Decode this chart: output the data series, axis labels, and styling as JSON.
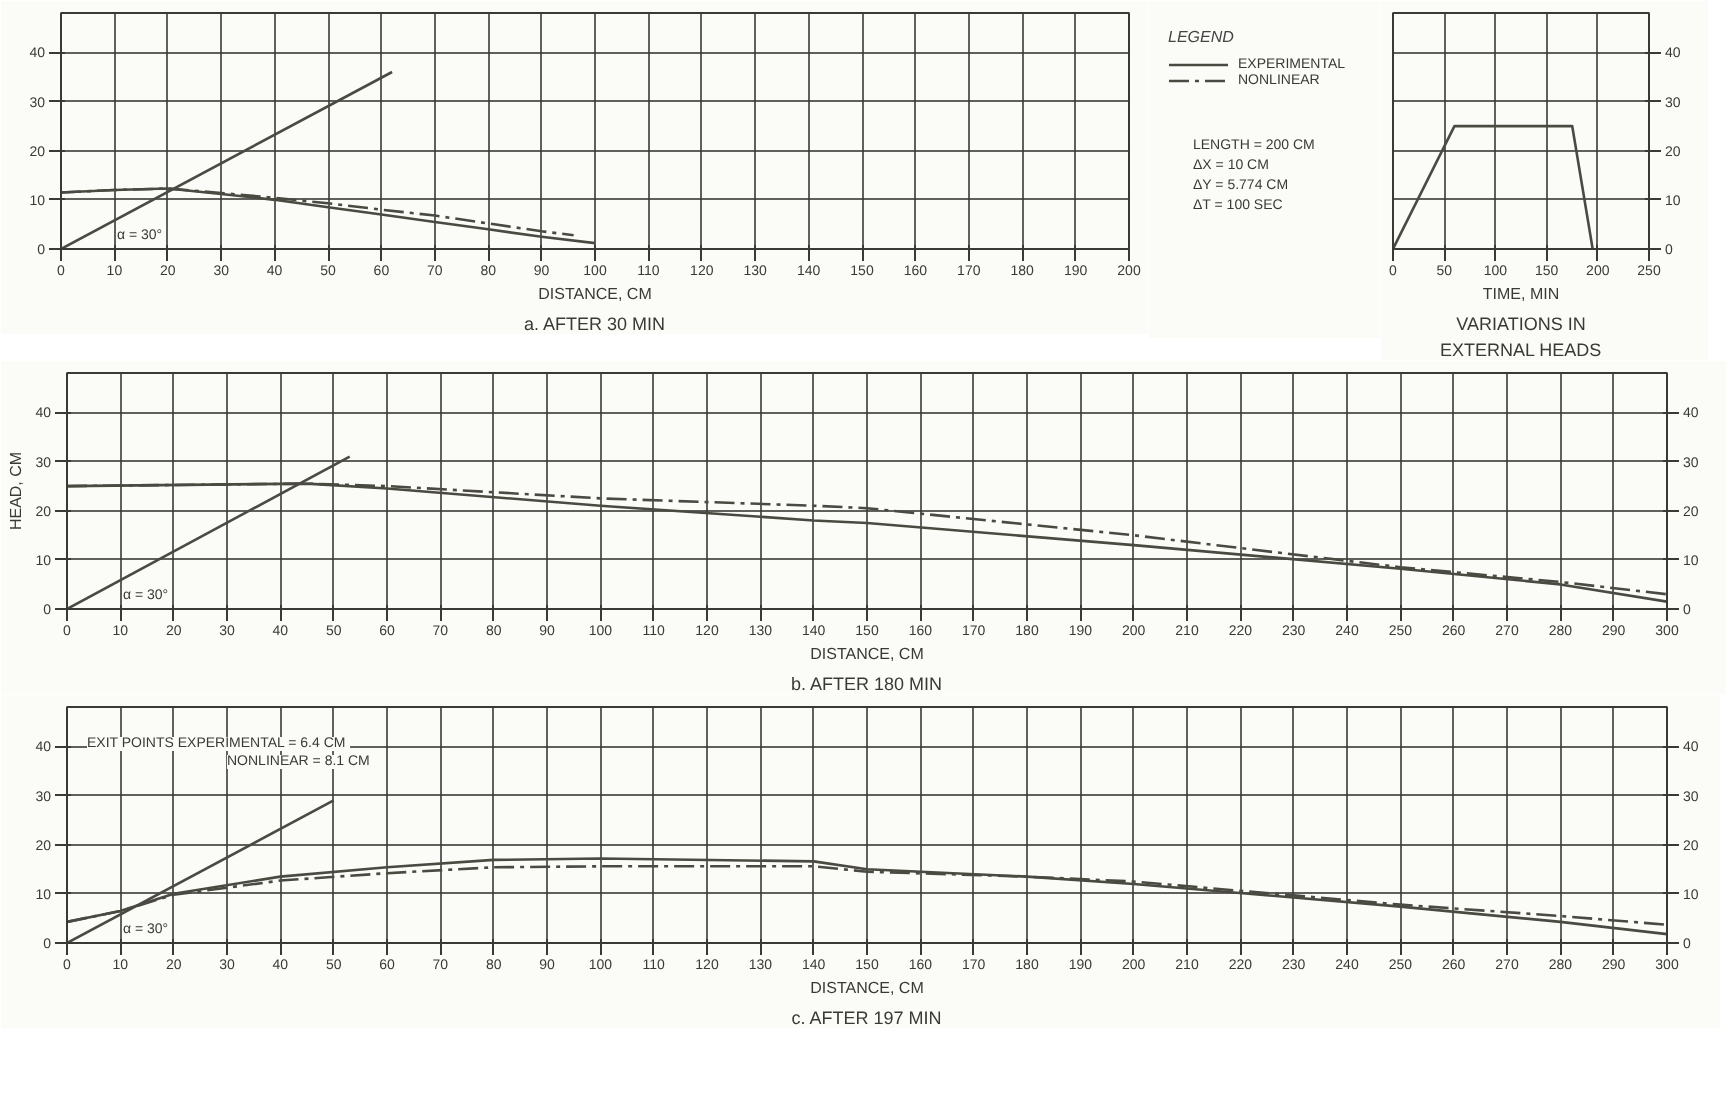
{
  "chart_data": [
    {
      "type": "line",
      "title": "a. AFTER 30 MIN",
      "xlabel": "DISTANCE, CM",
      "xlim": [
        0,
        200
      ],
      "ylim": [
        0,
        48
      ],
      "xticks": [
        0,
        10,
        20,
        30,
        40,
        50,
        60,
        70,
        80,
        90,
        100,
        110,
        120,
        130,
        140,
        150,
        160,
        170,
        180,
        190,
        200
      ],
      "yticks": [
        0,
        10,
        20,
        30,
        40
      ],
      "tick_labels": "xy",
      "grid": true,
      "legend": "right",
      "legend_title": "LEGEND",
      "series": [
        {
          "name": "EXPERIMENTAL",
          "color": "#4a4a42",
          "line_style": "solid",
          "x": [
            0,
            10,
            20,
            30,
            40,
            50,
            60,
            70,
            80,
            90,
            100
          ],
          "values": [
            11.5,
            12,
            12.3,
            11.2,
            10,
            8.5,
            7,
            5.5,
            4,
            2.5,
            1.2
          ]
        },
        {
          "name": "NONLINEAR",
          "color": "#4a4a42",
          "line_style": "dashdot",
          "x": [
            0,
            10,
            20,
            30,
            40,
            50,
            60,
            70,
            80,
            90,
            96
          ],
          "values": [
            11.5,
            12,
            12.3,
            11.4,
            10.4,
            9.3,
            8,
            6.8,
            5.2,
            3.6,
            2.8
          ]
        },
        {
          "color": "#4a4a42",
          "line_style": "solid",
          "x": [
            0,
            62
          ],
          "values": [
            0,
            36
          ]
        }
      ],
      "annotations": [
        "LENGTH = 200 CM",
        "ΔX = 10 CM",
        "ΔY = 5.774 CM",
        "ΔT = 100 SEC",
        "α = 30°"
      ]
    },
    {
      "type": "line",
      "title": "VARIATIONS IN EXTERNAL HEADS",
      "xlabel": "TIME, MIN",
      "xlim": [
        0,
        250
      ],
      "y2lim": [
        0,
        48
      ],
      "xticks": [
        0,
        50,
        100,
        150,
        200,
        250
      ],
      "y2ticks": [
        0,
        10,
        20,
        30,
        40
      ],
      "grid": true,
      "series": [
        {
          "color": "#4a4a42",
          "line_style": "solid",
          "axis": "y2",
          "x": [
            0,
            60,
            175,
            195
          ],
          "values": [
            0,
            25,
            25,
            0
          ]
        }
      ]
    },
    {
      "type": "line",
      "title": "b. AFTER 180 MIN",
      "xlabel": "DISTANCE, CM",
      "ylabel": "HEAD, CM",
      "xlim": [
        0,
        300
      ],
      "ylim": [
        0,
        48
      ],
      "y2lim": [
        0,
        48
      ],
      "xticks": [
        0,
        10,
        20,
        30,
        40,
        50,
        60,
        70,
        80,
        90,
        100,
        110,
        120,
        130,
        140,
        150,
        160,
        170,
        180,
        190,
        200,
        210,
        220,
        230,
        240,
        250,
        260,
        270,
        280,
        290,
        300
      ],
      "yticks": [
        0,
        10,
        20,
        30,
        40
      ],
      "y2ticks": [
        0,
        10,
        20,
        30,
        40
      ],
      "grid": true,
      "series": [
        {
          "color": "#4a4a42",
          "line_style": "solid",
          "x": [
            0,
            45,
            60,
            100,
            140,
            150,
            200,
            250,
            280,
            300
          ],
          "values": [
            25,
            25.5,
            24.5,
            21,
            18,
            17.5,
            13,
            8.2,
            5,
            1.5
          ]
        },
        {
          "color": "#4a4a42",
          "line_style": "dashdot",
          "x": [
            0,
            45,
            60,
            100,
            140,
            150,
            200,
            250,
            280,
            300
          ],
          "values": [
            25,
            25.5,
            25,
            22.5,
            21,
            20.5,
            15,
            8.5,
            5.5,
            3
          ]
        },
        {
          "color": "#4a4a42",
          "line_style": "solid",
          "x": [
            0,
            53
          ],
          "values": [
            0,
            31
          ]
        }
      ],
      "annotations": [
        "α = 30°"
      ]
    },
    {
      "type": "line",
      "title": "c. AFTER 197 MIN",
      "xlabel": "DISTANCE, CM",
      "xlim": [
        0,
        300
      ],
      "ylim": [
        0,
        48
      ],
      "y2lim": [
        0,
        48
      ],
      "xticks": [
        0,
        10,
        20,
        30,
        40,
        50,
        60,
        70,
        80,
        90,
        100,
        110,
        120,
        130,
        140,
        150,
        160,
        170,
        180,
        190,
        200,
        210,
        220,
        230,
        240,
        250,
        260,
        270,
        280,
        290,
        300
      ],
      "yticks": [
        0,
        10,
        20,
        30,
        40
      ],
      "y2ticks": [
        0,
        10,
        20,
        30,
        40
      ],
      "grid": true,
      "series": [
        {
          "color": "#4a4a42",
          "line_style": "solid",
          "x": [
            0,
            10,
            20,
            40,
            60,
            80,
            100,
            140,
            150,
            180,
            200,
            250,
            280,
            300
          ],
          "values": [
            4.3,
            6.5,
            10,
            13.5,
            15.4,
            16.9,
            17.2,
            16.6,
            15,
            13.5,
            12,
            7.4,
            4.3,
            1.8
          ]
        },
        {
          "color": "#4a4a42",
          "line_style": "dashdot",
          "x": [
            0,
            10,
            20,
            40,
            60,
            80,
            100,
            140,
            150,
            180,
            200,
            250,
            280,
            300
          ],
          "values": [
            4.3,
            6.5,
            9.8,
            12.7,
            14.2,
            15.4,
            15.6,
            15.6,
            14.5,
            13.5,
            12.5,
            7.8,
            5.5,
            3.7
          ]
        },
        {
          "color": "#4a4a42",
          "line_style": "solid",
          "x": [
            0,
            50
          ],
          "values": [
            0,
            29
          ]
        }
      ],
      "annotations": [
        "EXIT POINTS  EXPERIMENTAL = 6.4 CM",
        "NONLINEAR = 8.1 CM",
        "α = 30°"
      ]
    }
  ]
}
